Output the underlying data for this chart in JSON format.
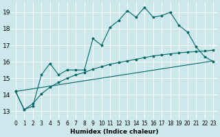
{
  "xlabel": "Humidex (Indice chaleur)",
  "bg_color": "#cce8ec",
  "grid_color": "#ffffff",
  "line_color": "#006666",
  "xlim": [
    -0.5,
    23.5
  ],
  "ylim": [
    12.5,
    19.6
  ],
  "xticks": [
    0,
    1,
    2,
    3,
    4,
    5,
    6,
    7,
    8,
    9,
    10,
    11,
    12,
    13,
    14,
    15,
    16,
    17,
    18,
    19,
    20,
    21,
    22,
    23
  ],
  "yticks": [
    13,
    14,
    15,
    16,
    17,
    18,
    19
  ],
  "series1_x": [
    0,
    1,
    2,
    3,
    4,
    5,
    6,
    7,
    8,
    9,
    10,
    11,
    12,
    13,
    14,
    15,
    16,
    17,
    18,
    19,
    20,
    21,
    22,
    23
  ],
  "series1_y": [
    14.2,
    13.1,
    13.3,
    15.2,
    15.9,
    15.2,
    15.5,
    15.5,
    15.5,
    17.4,
    17.0,
    18.1,
    18.5,
    19.1,
    18.7,
    19.3,
    18.7,
    18.8,
    19.0,
    18.2,
    17.8,
    16.9,
    16.3,
    16.0
  ],
  "line1_x": [
    0,
    23
  ],
  "line1_y": [
    14.2,
    16.05
  ],
  "line2_x": [
    0,
    1,
    2,
    3,
    4,
    5,
    6,
    7,
    8,
    9,
    10,
    11,
    12,
    13,
    14,
    15,
    16,
    17,
    18,
    19,
    20,
    21,
    22,
    23
  ],
  "line2_y": [
    14.2,
    13.1,
    13.45,
    14.05,
    14.45,
    14.75,
    15.0,
    15.2,
    15.35,
    15.55,
    15.7,
    15.85,
    15.95,
    16.05,
    16.15,
    16.25,
    16.35,
    16.42,
    16.48,
    16.54,
    16.58,
    16.62,
    16.65,
    16.7
  ]
}
